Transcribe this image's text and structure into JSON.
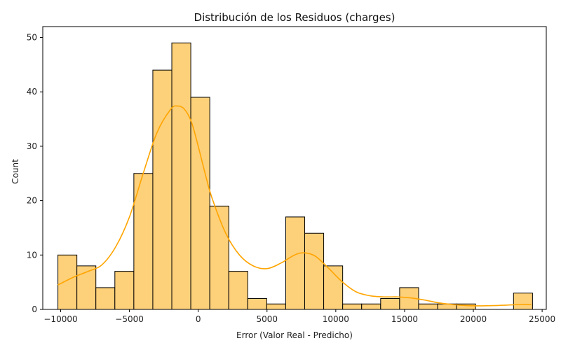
{
  "chart_data": {
    "type": "histogram",
    "title": "Distribución de los Residuos (charges)",
    "xlabel": "Error (Valor Real - Predicho)",
    "ylabel": "Count",
    "xlim": [
      -11300,
      25300
    ],
    "ylim": [
      0,
      52
    ],
    "xticks": [
      -10000,
      -5000,
      0,
      5000,
      10000,
      15000,
      20000,
      25000
    ],
    "xtick_labels": [
      "−10000",
      "−5000",
      "0",
      "5000",
      "10000",
      "15000",
      "20000",
      "25000"
    ],
    "yticks": [
      0,
      10,
      20,
      30,
      40,
      50
    ],
    "bin_start": -10200,
    "bin_width": 1380,
    "counts": [
      10,
      8,
      4,
      7,
      25,
      44,
      49,
      39,
      19,
      7,
      2,
      1,
      17,
      14,
      8,
      1,
      1,
      2,
      4,
      1,
      1,
      1,
      0,
      0,
      3
    ],
    "bar_color": "#fdd07a",
    "bar_edge_color": "#000000",
    "kde_color": "#ffa500",
    "kde": {
      "x": [
        -10200,
        -9000,
        -8000,
        -7000,
        -6000,
        -5000,
        -4000,
        -3000,
        -2000,
        -1500,
        -1000,
        -500,
        0,
        500,
        1000,
        2000,
        3000,
        4000,
        5000,
        6000,
        7000,
        7700,
        8500,
        9500,
        10500,
        11500,
        12500,
        13500,
        14500,
        15500,
        16500,
        17500,
        18500,
        19500,
        20500,
        21500,
        22500,
        23500,
        24200
      ],
      "y": [
        4.5,
        6.0,
        7.0,
        8.2,
        11.5,
        17.0,
        25.0,
        32.5,
        36.8,
        37.4,
        36.8,
        34.5,
        30.0,
        25.0,
        20.5,
        14.0,
        10.0,
        8.0,
        7.5,
        8.5,
        10.0,
        10.4,
        9.8,
        7.5,
        5.0,
        3.2,
        2.5,
        2.3,
        2.3,
        2.1,
        1.7,
        1.2,
        0.9,
        0.7,
        0.65,
        0.7,
        0.8,
        0.9,
        0.9
      ]
    }
  }
}
